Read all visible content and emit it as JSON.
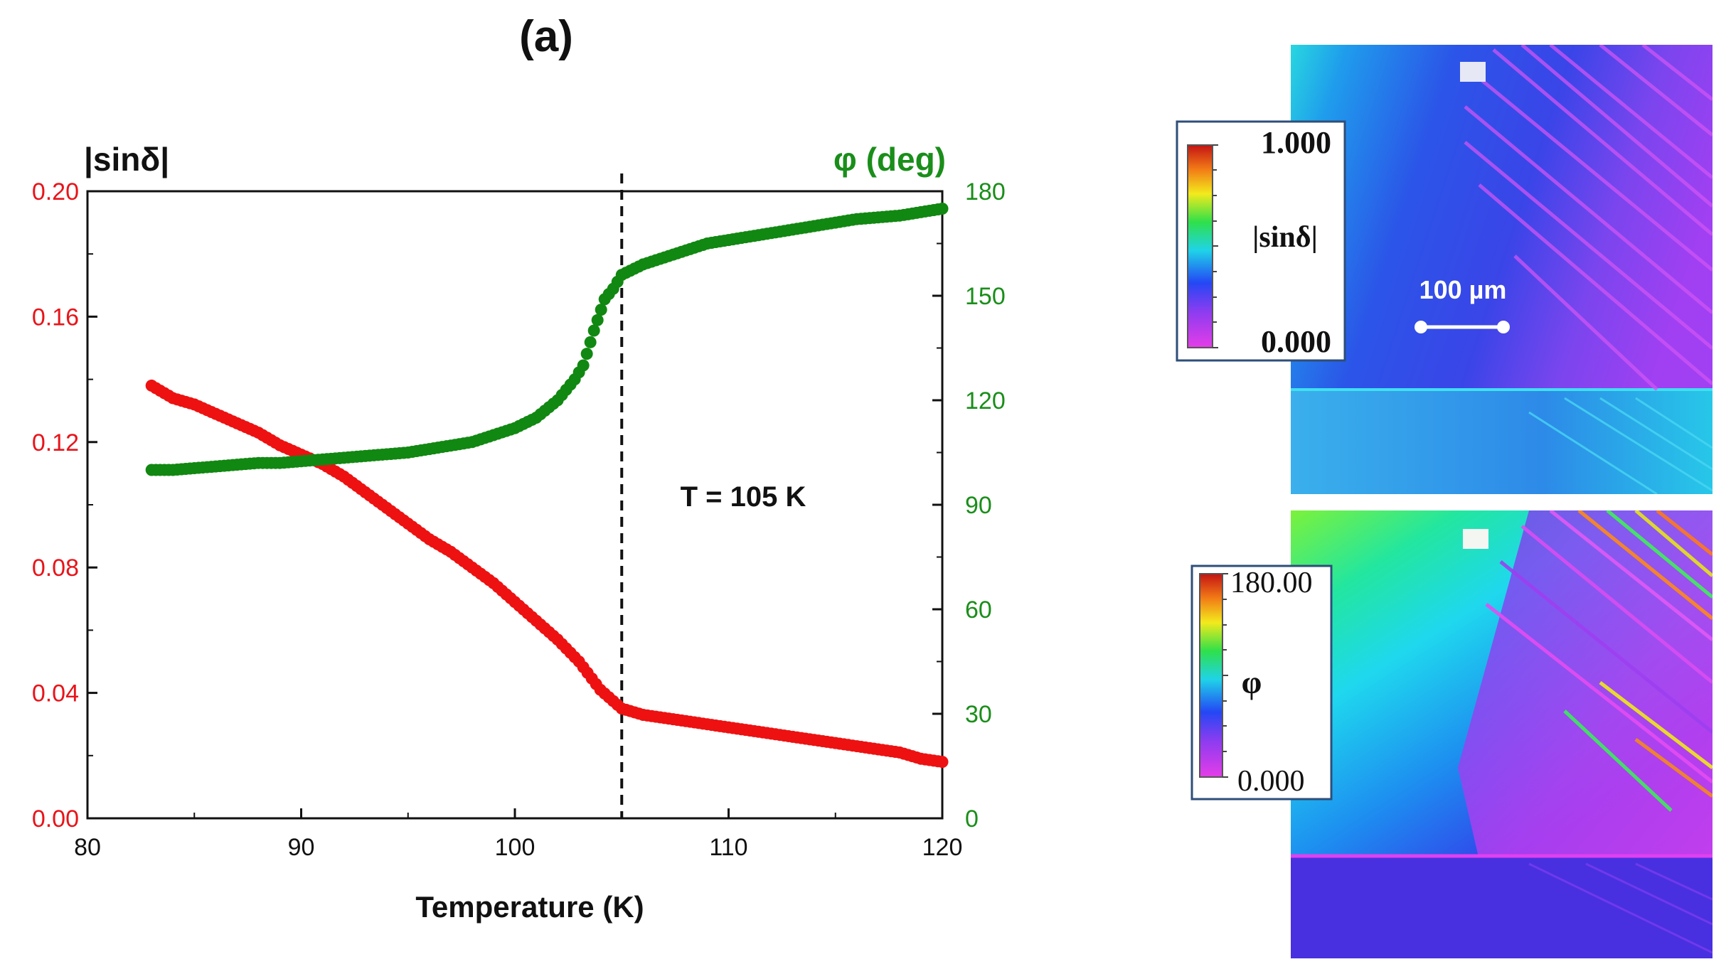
{
  "panel_label": "(a)",
  "chart_data": {
    "type": "scatter",
    "xlabel": "Temperature (K)",
    "xlim": [
      80,
      120
    ],
    "xticks": [
      80,
      90,
      100,
      110,
      120
    ],
    "left_axis": {
      "label": "|sinδ|",
      "ylim": [
        0,
        0.2
      ],
      "ticks": [
        "0.00",
        "0.04",
        "0.08",
        "0.12",
        "0.16",
        "0.20"
      ],
      "color": "#e8141a"
    },
    "right_axis": {
      "label": "φ (deg)",
      "ylim": [
        0,
        180
      ],
      "ticks": [
        "0",
        "30",
        "60",
        "90",
        "120",
        "150",
        "180"
      ],
      "color": "#1a8e1a"
    },
    "series": [
      {
        "name": "|sinδ|",
        "axis": "left",
        "color": "#ee1111",
        "points": [
          [
            83,
            0.138
          ],
          [
            84,
            0.134
          ],
          [
            85,
            0.132
          ],
          [
            86,
            0.129
          ],
          [
            87,
            0.126
          ],
          [
            88,
            0.123
          ],
          [
            89,
            0.119
          ],
          [
            90,
            0.116
          ],
          [
            91,
            0.113
          ],
          [
            92,
            0.109
          ],
          [
            93,
            0.104
          ],
          [
            94,
            0.099
          ],
          [
            95,
            0.094
          ],
          [
            96,
            0.089
          ],
          [
            97,
            0.085
          ],
          [
            98,
            0.08
          ],
          [
            99,
            0.075
          ],
          [
            100,
            0.069
          ],
          [
            101,
            0.063
          ],
          [
            102,
            0.057
          ],
          [
            103,
            0.05
          ],
          [
            104,
            0.041
          ],
          [
            105,
            0.035
          ],
          [
            106,
            0.033
          ],
          [
            107,
            0.032
          ],
          [
            108,
            0.031
          ],
          [
            109,
            0.03
          ],
          [
            110,
            0.029
          ],
          [
            111,
            0.028
          ],
          [
            112,
            0.027
          ],
          [
            113,
            0.026
          ],
          [
            114,
            0.025
          ],
          [
            115,
            0.024
          ],
          [
            116,
            0.023
          ],
          [
            117,
            0.022
          ],
          [
            118,
            0.021
          ],
          [
            119,
            0.019
          ],
          [
            120,
            0.018
          ]
        ]
      },
      {
        "name": "φ (deg)",
        "axis": "right",
        "color": "#118811",
        "points": [
          [
            83,
            100
          ],
          [
            84,
            100
          ],
          [
            85,
            100.5
          ],
          [
            86,
            101
          ],
          [
            87,
            101.5
          ],
          [
            88,
            102
          ],
          [
            89,
            102
          ],
          [
            90,
            102.5
          ],
          [
            91,
            103
          ],
          [
            92,
            103.5
          ],
          [
            93,
            104
          ],
          [
            94,
            104.5
          ],
          [
            95,
            105
          ],
          [
            96,
            106
          ],
          [
            97,
            107
          ],
          [
            98,
            108
          ],
          [
            99,
            110
          ],
          [
            100,
            112
          ],
          [
            101,
            115
          ],
          [
            102,
            120
          ],
          [
            102.8,
            126
          ],
          [
            103.2,
            130
          ],
          [
            103.7,
            140
          ],
          [
            104.2,
            149
          ],
          [
            104.6,
            152
          ],
          [
            105,
            156
          ],
          [
            106,
            159
          ],
          [
            107,
            161
          ],
          [
            108,
            163
          ],
          [
            109,
            165
          ],
          [
            110,
            166
          ],
          [
            111,
            167
          ],
          [
            112,
            168
          ],
          [
            113,
            169
          ],
          [
            114,
            170
          ],
          [
            115,
            171
          ],
          [
            116,
            172
          ],
          [
            117,
            172.5
          ],
          [
            118,
            173
          ],
          [
            119,
            174
          ],
          [
            120,
            175
          ]
        ]
      }
    ],
    "vline": {
      "x": 105,
      "style": "dashed"
    },
    "annotation": "T = 105 K"
  },
  "maps": [
    {
      "name": "sin-delta-map",
      "colorbar": {
        "max": "1.000",
        "min": "0.000",
        "label": "|sinδ|"
      },
      "scalebar": "100 µm"
    },
    {
      "name": "phi-map",
      "colorbar": {
        "max": "180.00",
        "min": "0.000",
        "label": "φ"
      }
    }
  ]
}
